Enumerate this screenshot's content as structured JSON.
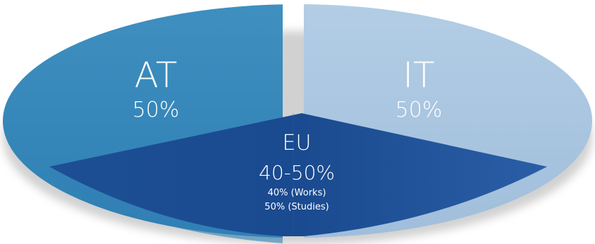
{
  "colors": {
    "at_segment": "#3a8bbd",
    "it_segment": "#a9c5df",
    "eu_segment": "#1f539c",
    "shadow": "#9a9a9a"
  },
  "segments": {
    "at": {
      "code": "AT",
      "value": "50%"
    },
    "it": {
      "code": "IT",
      "value": "50%"
    },
    "eu": {
      "code": "EU",
      "range": "40-50%",
      "details": [
        "40% (Works)",
        "50% (Studies)"
      ]
    }
  }
}
